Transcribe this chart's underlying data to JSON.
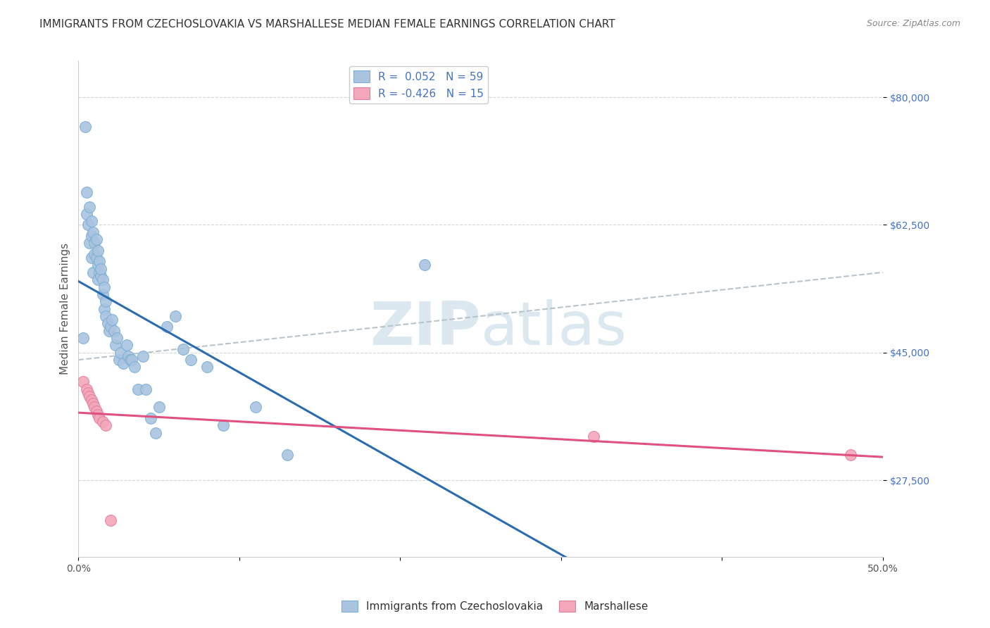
{
  "title": "IMMIGRANTS FROM CZECHOSLOVAKIA VS MARSHALLESE MEDIAN FEMALE EARNINGS CORRELATION CHART",
  "source": "Source: ZipAtlas.com",
  "ylabel": "Median Female Earnings",
  "xlim": [
    0.0,
    0.5
  ],
  "ylim": [
    17000,
    85000
  ],
  "xtick_values": [
    0.0,
    0.1,
    0.2,
    0.3,
    0.4,
    0.5
  ],
  "xticklabels": [
    "0.0%",
    "",
    "",
    "",
    "",
    "50.0%"
  ],
  "ytick_values": [
    27500,
    45000,
    62500,
    80000
  ],
  "ytick_labels": [
    "$27,500",
    "$45,000",
    "$62,500",
    "$80,000"
  ],
  "legend_entries": [
    {
      "label": "Immigrants from Czechoslovakia",
      "color": "#aac4e0",
      "edge_color": "#7bafd4",
      "r": "0.052",
      "n": "59"
    },
    {
      "label": "Marshallese",
      "color": "#f4a7b9",
      "edge_color": "#e080a0",
      "r": "-0.426",
      "n": "15"
    }
  ],
  "blue_scatter_x": [
    0.003,
    0.004,
    0.005,
    0.005,
    0.006,
    0.007,
    0.007,
    0.008,
    0.008,
    0.008,
    0.009,
    0.009,
    0.01,
    0.01,
    0.011,
    0.011,
    0.012,
    0.012,
    0.012,
    0.013,
    0.013,
    0.014,
    0.014,
    0.015,
    0.015,
    0.016,
    0.016,
    0.017,
    0.017,
    0.018,
    0.019,
    0.02,
    0.021,
    0.022,
    0.023,
    0.024,
    0.025,
    0.026,
    0.028,
    0.03,
    0.031,
    0.032,
    0.033,
    0.035,
    0.037,
    0.04,
    0.042,
    0.045,
    0.048,
    0.05,
    0.055,
    0.06,
    0.065,
    0.07,
    0.08,
    0.09,
    0.11,
    0.13,
    0.215
  ],
  "blue_scatter_y": [
    47000,
    76000,
    67000,
    64000,
    62500,
    65000,
    60000,
    63000,
    61000,
    58000,
    61500,
    56000,
    60000,
    58500,
    58000,
    60500,
    57000,
    59000,
    55000,
    56000,
    57500,
    55500,
    56500,
    53000,
    55000,
    54000,
    51000,
    52000,
    50000,
    49000,
    48000,
    48500,
    49500,
    48000,
    46000,
    47000,
    44000,
    45000,
    43500,
    46000,
    44500,
    44000,
    44000,
    43000,
    40000,
    44500,
    40000,
    36000,
    34000,
    37500,
    48500,
    50000,
    45500,
    44000,
    43000,
    35000,
    37500,
    31000,
    57000
  ],
  "pink_scatter_x": [
    0.003,
    0.005,
    0.006,
    0.007,
    0.008,
    0.009,
    0.01,
    0.011,
    0.012,
    0.013,
    0.015,
    0.017,
    0.02,
    0.32,
    0.48
  ],
  "pink_scatter_y": [
    41000,
    40000,
    39500,
    39000,
    38500,
    38000,
    37500,
    37000,
    36500,
    36000,
    35500,
    35000,
    22000,
    33500,
    31000
  ],
  "blue_line_color": "#2b6cb0",
  "pink_line_color": "#e05080",
  "gray_dash_color": "#b8c4cc",
  "watermark_color": "#dce8f0",
  "background_color": "#ffffff",
  "grid_color": "#d0d8e0",
  "title_fontsize": 11,
  "axis_label_fontsize": 11,
  "tick_fontsize": 10,
  "legend_fontsize": 11,
  "source_fontsize": 9
}
